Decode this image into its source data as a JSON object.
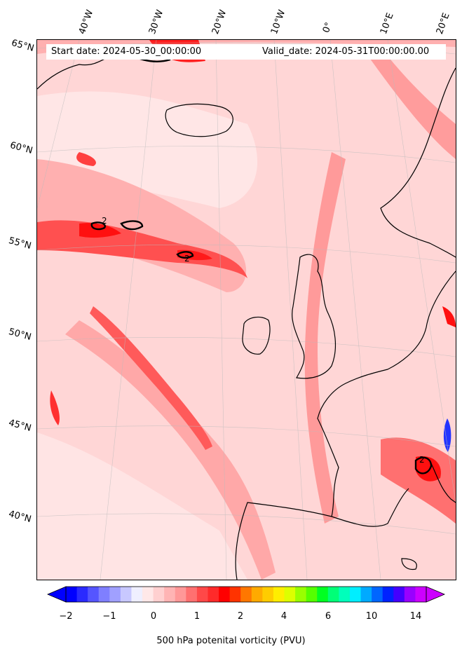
{
  "header": {
    "start_text": "Start date: 2024-05-30_00:00:00",
    "valid_text": "Valid_date: 2024-05-31T00:00:00.00"
  },
  "longitude_labels": [
    "40°W",
    "30°W",
    "20°W",
    "10°W",
    "0°",
    "10°E",
    "20°E"
  ],
  "latitude_labels": [
    "65°N",
    "60°N",
    "55°N",
    "50°N",
    "45°N",
    "40°N"
  ],
  "contour_label": "2",
  "colorbar": {
    "label": "500 hPa potenital vorticity (PVU)",
    "tick_labels": [
      "−2",
      "−1",
      "0",
      "1",
      "2",
      "4",
      "6",
      "10",
      "14"
    ],
    "colors": [
      "#0000ff",
      "#2a2aff",
      "#5555ff",
      "#7f7fff",
      "#a0a0ff",
      "#c8c8ff",
      "#efefff",
      "#ffe8e8",
      "#ffd0d0",
      "#ffb4b4",
      "#ff9898",
      "#ff7070",
      "#ff4848",
      "#ff2a2a",
      "#ff0000",
      "#ff3300",
      "#ff7700",
      "#ffaa00",
      "#ffcc00",
      "#ffee00",
      "#ddff00",
      "#99ff00",
      "#55ff00",
      "#00ff22",
      "#00ff77",
      "#00ffbb",
      "#00eeff",
      "#00aaff",
      "#0066ff",
      "#0022ff",
      "#4400ff",
      "#9900ff",
      "#cc00ff"
    ],
    "extend": "both"
  },
  "map": {
    "projection": "lambert-conformal",
    "extent": {
      "lon_min": -45,
      "lon_max": 20,
      "lat_min": 37,
      "lat_max": 66
    },
    "fill_colors": {
      "background": "#ffd9d9",
      "weak": "#ffecec",
      "moderate": "#ffaaaa",
      "strong": "#ff5a5a",
      "peak": "#ff1010",
      "negative": "#2233ff"
    }
  }
}
